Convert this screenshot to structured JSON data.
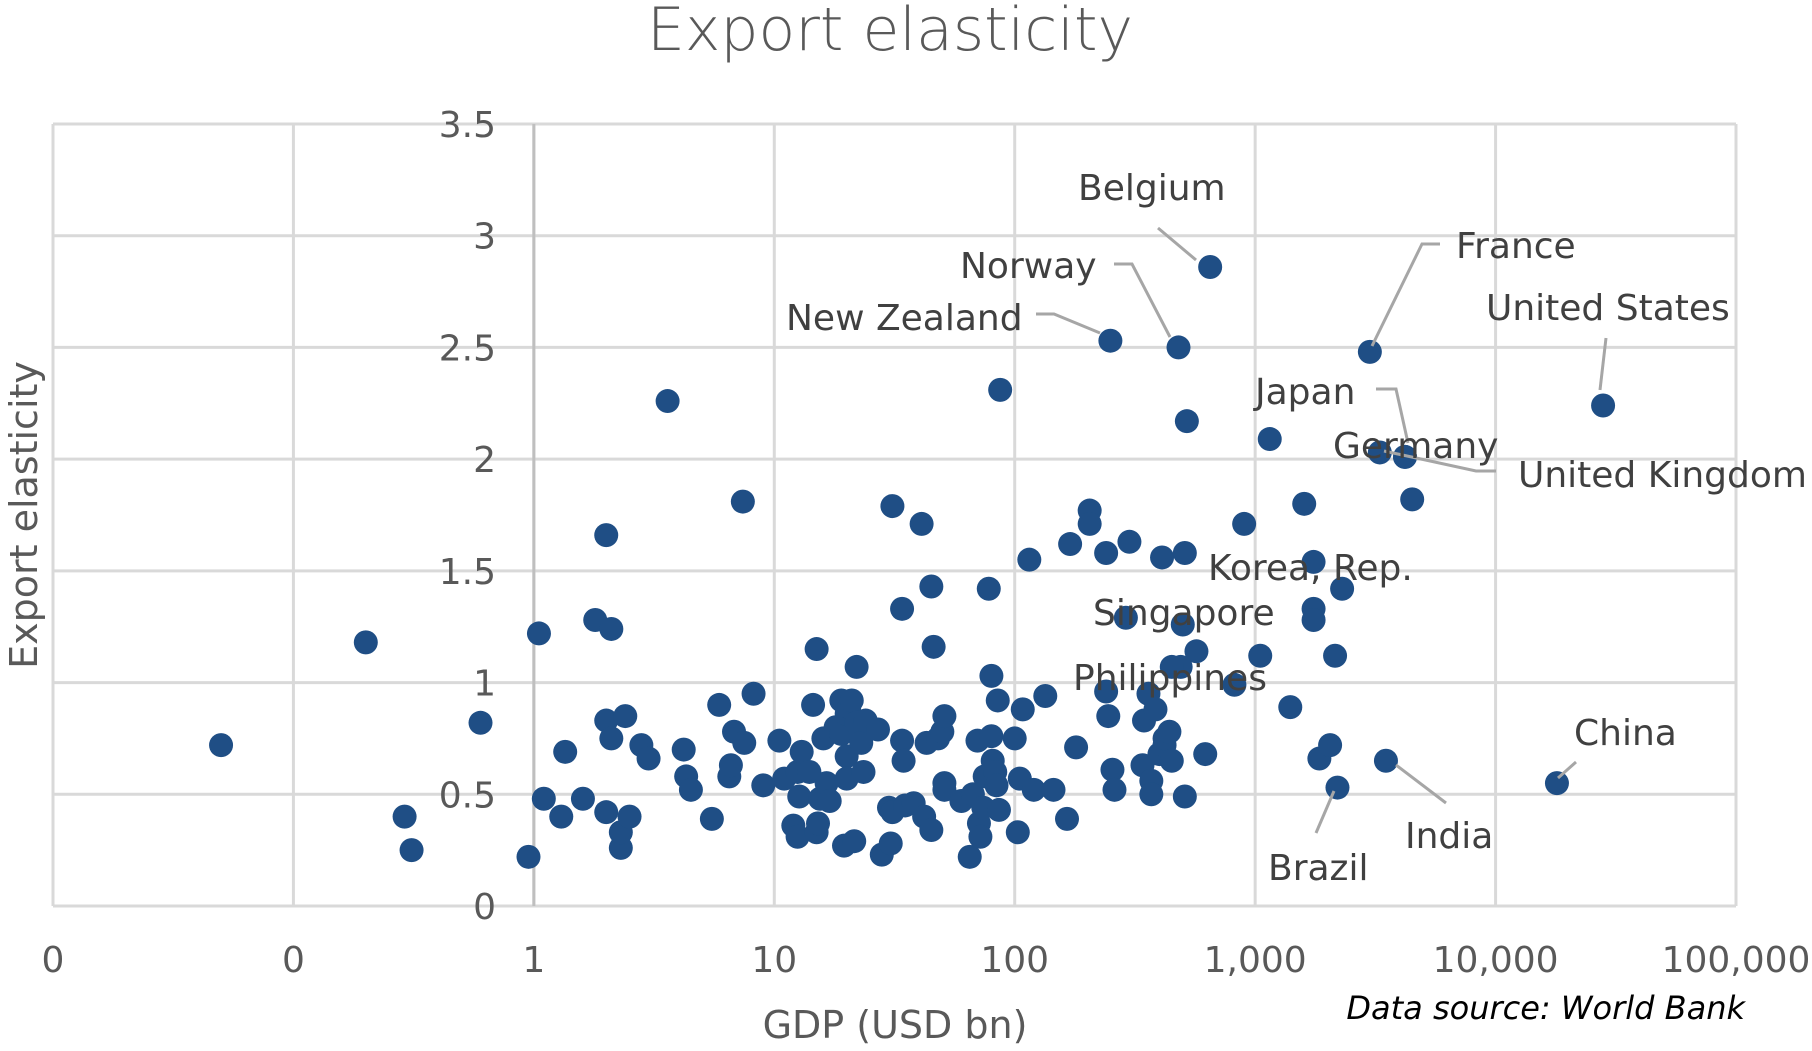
{
  "chart_data": {
    "type": "scatter",
    "title": "Export elasticity",
    "xlabel": "GDP (USD bn)",
    "ylabel": "Export elasticity",
    "x_scale": "log",
    "xlim": [
      0.01,
      100000
    ],
    "ylim": [
      0,
      3.5
    ],
    "x_ticks": [
      {
        "value": 0.01,
        "label": "0"
      },
      {
        "value": 0.1,
        "label": "0"
      },
      {
        "value": 1,
        "label": "1"
      },
      {
        "value": 10,
        "label": "10"
      },
      {
        "value": 100,
        "label": "100"
      },
      {
        "value": 1000,
        "label": "1,000"
      },
      {
        "value": 10000,
        "label": "10,000"
      },
      {
        "value": 100000,
        "label": "100,000"
      }
    ],
    "y_ticks": [
      {
        "value": 0,
        "label": "0"
      },
      {
        "value": 0.5,
        "label": "0.5"
      },
      {
        "value": 1,
        "label": "1"
      },
      {
        "value": 1.5,
        "label": "1.5"
      },
      {
        "value": 2,
        "label": "2"
      },
      {
        "value": 2.5,
        "label": "2.5"
      },
      {
        "value": 3,
        "label": "3"
      },
      {
        "value": 3.5,
        "label": "3.5"
      }
    ],
    "grid": true,
    "marker_color": "#1f4e85",
    "source": "Data source: World Bank",
    "labeled_points": [
      {
        "name": "Belgium",
        "x": 650,
        "y": 2.86
      },
      {
        "name": "Norway",
        "x": 480,
        "y": 2.5
      },
      {
        "name": "New Zealand",
        "x": 250,
        "y": 2.53
      },
      {
        "name": "France",
        "x": 3000,
        "y": 2.48
      },
      {
        "name": "United States",
        "x": 28000,
        "y": 2.24
      },
      {
        "name": "Japan",
        "x": 4200,
        "y": 2.01
      },
      {
        "name": "Germany",
        "x": 3300,
        "y": 2.03
      },
      {
        "name": "United Kingdom",
        "x": 4200,
        "y": 2.01
      },
      {
        "name": "Korea, Rep.",
        "x": 1750,
        "y": 1.54
      },
      {
        "name": "Singapore",
        "x": 500,
        "y": 1.26
      },
      {
        "name": "Philippines",
        "x": 450,
        "y": 1.07
      },
      {
        "name": "China",
        "x": 18000,
        "y": 0.55
      },
      {
        "name": "India",
        "x": 3500,
        "y": 0.65
      },
      {
        "name": "Brazil",
        "x": 2200,
        "y": 0.53
      }
    ],
    "points": [
      [
        0.05,
        0.72
      ],
      [
        0.2,
        1.18
      ],
      [
        0.29,
        0.4
      ],
      [
        0.31,
        0.25
      ],
      [
        0.6,
        0.82
      ],
      [
        0.95,
        0.22
      ],
      [
        1.05,
        1.22
      ],
      [
        1.1,
        0.48
      ],
      [
        1.3,
        0.4
      ],
      [
        1.35,
        0.69
      ],
      [
        1.6,
        0.48
      ],
      [
        1.8,
        1.28
      ],
      [
        2.0,
        0.42
      ],
      [
        2.0,
        0.83
      ],
      [
        2.0,
        1.66
      ],
      [
        2.1,
        0.75
      ],
      [
        2.1,
        1.24
      ],
      [
        2.3,
        0.26
      ],
      [
        2.3,
        0.33
      ],
      [
        2.4,
        0.85
      ],
      [
        2.5,
        0.4
      ],
      [
        2.8,
        0.72
      ],
      [
        3.0,
        0.66
      ],
      [
        3.6,
        2.26
      ],
      [
        4.2,
        0.7
      ],
      [
        4.3,
        0.58
      ],
      [
        4.5,
        0.52
      ],
      [
        5.5,
        0.39
      ],
      [
        5.9,
        0.9
      ],
      [
        6.5,
        0.58
      ],
      [
        6.6,
        0.63
      ],
      [
        6.8,
        0.78
      ],
      [
        7.4,
        1.81
      ],
      [
        7.5,
        0.73
      ],
      [
        8.2,
        0.95
      ],
      [
        9,
        0.54
      ],
      [
        10.5,
        0.74
      ],
      [
        11,
        0.57
      ],
      [
        12,
        0.36
      ],
      [
        12.5,
        0.6
      ],
      [
        12.5,
        0.31
      ],
      [
        12.7,
        0.49
      ],
      [
        13,
        0.69
      ],
      [
        14,
        0.6
      ],
      [
        14.5,
        0.9
      ],
      [
        15,
        1.15
      ],
      [
        15,
        0.33
      ],
      [
        15.2,
        0.37
      ],
      [
        15.5,
        0.48
      ],
      [
        16,
        0.75
      ],
      [
        16.5,
        0.55
      ],
      [
        17,
        0.47
      ],
      [
        18,
        0.8
      ],
      [
        19,
        0.92
      ],
      [
        19,
        0.77
      ],
      [
        19.5,
        0.27
      ],
      [
        20,
        0.86
      ],
      [
        20,
        0.67
      ],
      [
        20,
        0.57
      ],
      [
        20.5,
        0.89
      ],
      [
        21,
        0.92
      ],
      [
        21.5,
        0.29
      ],
      [
        22,
        1.07
      ],
      [
        22,
        0.82
      ],
      [
        23,
        0.73
      ],
      [
        23.5,
        0.6
      ],
      [
        24,
        0.83
      ],
      [
        27,
        0.79
      ],
      [
        28,
        0.23
      ],
      [
        30,
        0.44
      ],
      [
        30.5,
        0.28
      ],
      [
        31,
        1.79
      ],
      [
        31,
        0.42
      ],
      [
        34,
        1.33
      ],
      [
        34,
        0.74
      ],
      [
        34.5,
        0.65
      ],
      [
        35,
        0.45
      ],
      [
        38,
        0.46
      ],
      [
        41,
        1.71
      ],
      [
        42,
        0.4
      ],
      [
        43,
        0.73
      ],
      [
        45,
        0.34
      ],
      [
        45,
        1.43
      ],
      [
        46,
        1.16
      ],
      [
        48,
        0.75
      ],
      [
        50,
        0.78
      ],
      [
        51,
        0.85
      ],
      [
        51,
        0.55
      ],
      [
        51,
        0.52
      ],
      [
        60,
        0.47
      ],
      [
        65,
        0.22
      ],
      [
        67,
        0.5
      ],
      [
        70,
        0.74
      ],
      [
        71,
        0.37
      ],
      [
        72,
        0.31
      ],
      [
        74,
        0.44
      ],
      [
        75,
        0.58
      ],
      [
        78,
        1.42
      ],
      [
        80,
        0.76
      ],
      [
        80,
        1.03
      ],
      [
        81,
        0.65
      ],
      [
        83,
        0.6
      ],
      [
        84,
        0.54
      ],
      [
        85,
        0.92
      ],
      [
        86,
        0.43
      ],
      [
        87,
        2.31
      ],
      [
        100,
        0.75
      ],
      [
        103,
        0.33
      ],
      [
        105,
        0.57
      ],
      [
        108,
        0.88
      ],
      [
        115,
        1.55
      ],
      [
        120,
        0.52
      ],
      [
        134,
        0.94
      ],
      [
        145,
        0.52
      ],
      [
        165,
        0.39
      ],
      [
        170,
        1.62
      ],
      [
        180,
        0.71
      ],
      [
        205,
        1.77
      ],
      [
        205,
        1.71
      ],
      [
        240,
        1.58
      ],
      [
        240,
        0.96
      ],
      [
        245,
        0.85
      ],
      [
        255,
        0.61
      ],
      [
        260,
        0.52
      ],
      [
        290,
        1.29
      ],
      [
        300,
        1.63
      ],
      [
        340,
        0.63
      ],
      [
        345,
        0.83
      ],
      [
        360,
        0.95
      ],
      [
        370,
        0.56
      ],
      [
        370,
        0.5
      ],
      [
        385,
        0.88
      ],
      [
        400,
        0.68
      ],
      [
        410,
        1.56
      ],
      [
        420,
        0.72
      ],
      [
        420,
        0.75
      ],
      [
        440,
        0.78
      ],
      [
        450,
        0.65
      ],
      [
        490,
        1.07
      ],
      [
        510,
        1.58
      ],
      [
        510,
        0.49
      ],
      [
        520,
        2.17
      ],
      [
        570,
        1.14
      ],
      [
        620,
        0.68
      ],
      [
        820,
        0.99
      ],
      [
        900,
        1.71
      ],
      [
        1050,
        1.12
      ],
      [
        1150,
        2.09
      ],
      [
        1400,
        0.89
      ],
      [
        1600,
        1.8
      ],
      [
        1750,
        1.33
      ],
      [
        1750,
        1.28
      ],
      [
        1850,
        0.66
      ],
      [
        2050,
        0.72
      ],
      [
        2150,
        1.12
      ],
      [
        2300,
        1.42
      ],
      [
        4500,
        1.82
      ]
    ]
  }
}
